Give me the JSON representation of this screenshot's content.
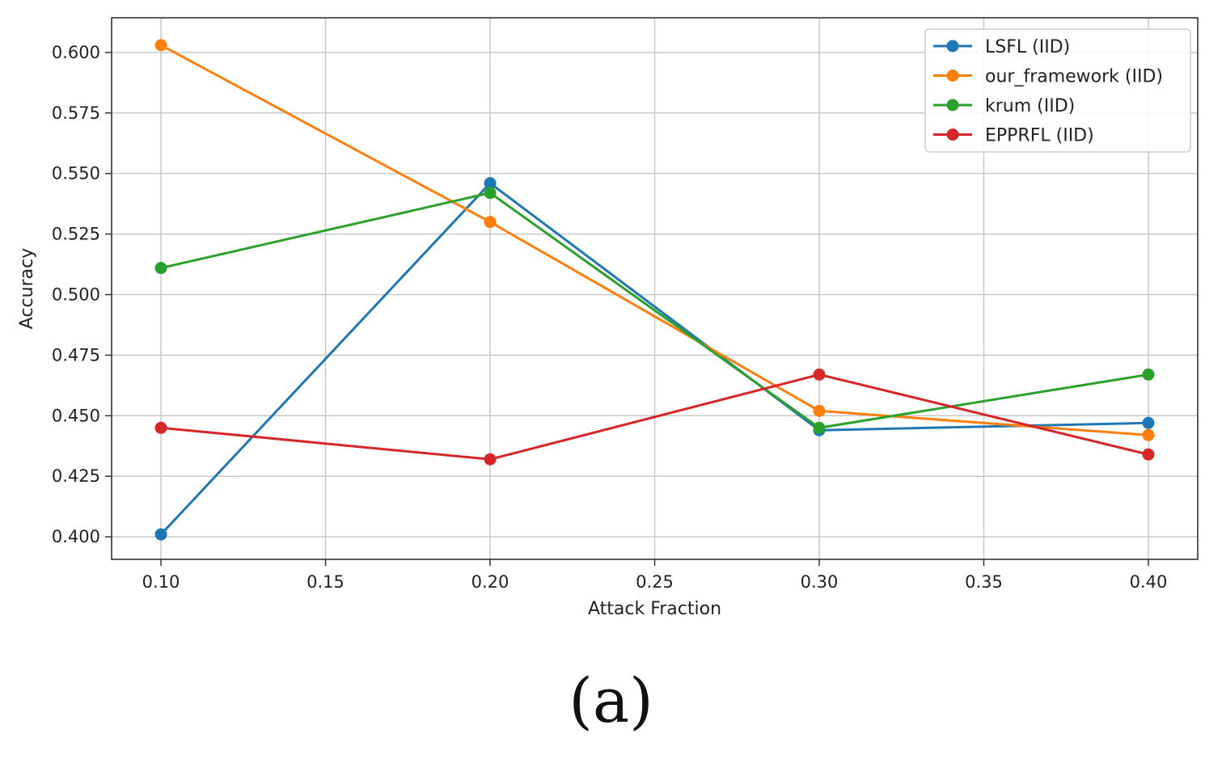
{
  "chart_data": {
    "type": "line",
    "xlabel": "Attack Fraction",
    "ylabel": "Accuracy",
    "x": [
      0.1,
      0.2,
      0.3,
      0.4
    ],
    "xlim": [
      0.085,
      0.415
    ],
    "ylim": [
      0.3907,
      0.6143
    ],
    "xticks": [
      0.1,
      0.15,
      0.2,
      0.25,
      0.3,
      0.35,
      0.4
    ],
    "xtick_labels": [
      "0.10",
      "0.15",
      "0.20",
      "0.25",
      "0.30",
      "0.35",
      "0.40"
    ],
    "yticks": [
      0.4,
      0.425,
      0.45,
      0.475,
      0.5,
      0.525,
      0.55,
      0.575,
      0.6
    ],
    "ytick_labels": [
      "0.400",
      "0.425",
      "0.450",
      "0.475",
      "0.500",
      "0.525",
      "0.550",
      "0.575",
      "0.600"
    ],
    "grid": true,
    "legend_position": "top-right",
    "series": [
      {
        "name": "LSFL (IID)",
        "color": "#1f77b4",
        "values": [
          0.401,
          0.546,
          0.444,
          0.447
        ]
      },
      {
        "name": "our_framework (IID)",
        "color": "#ff7f0e",
        "values": [
          0.603,
          0.53,
          0.452,
          0.442
        ]
      },
      {
        "name": "krum (IID)",
        "color": "#2ca02c",
        "values": [
          0.511,
          0.542,
          0.445,
          0.467
        ]
      },
      {
        "name": "EPPRFL (IID)",
        "color": "#d62728",
        "values": [
          0.445,
          0.432,
          0.467,
          0.434
        ]
      }
    ]
  },
  "caption": "(a)"
}
